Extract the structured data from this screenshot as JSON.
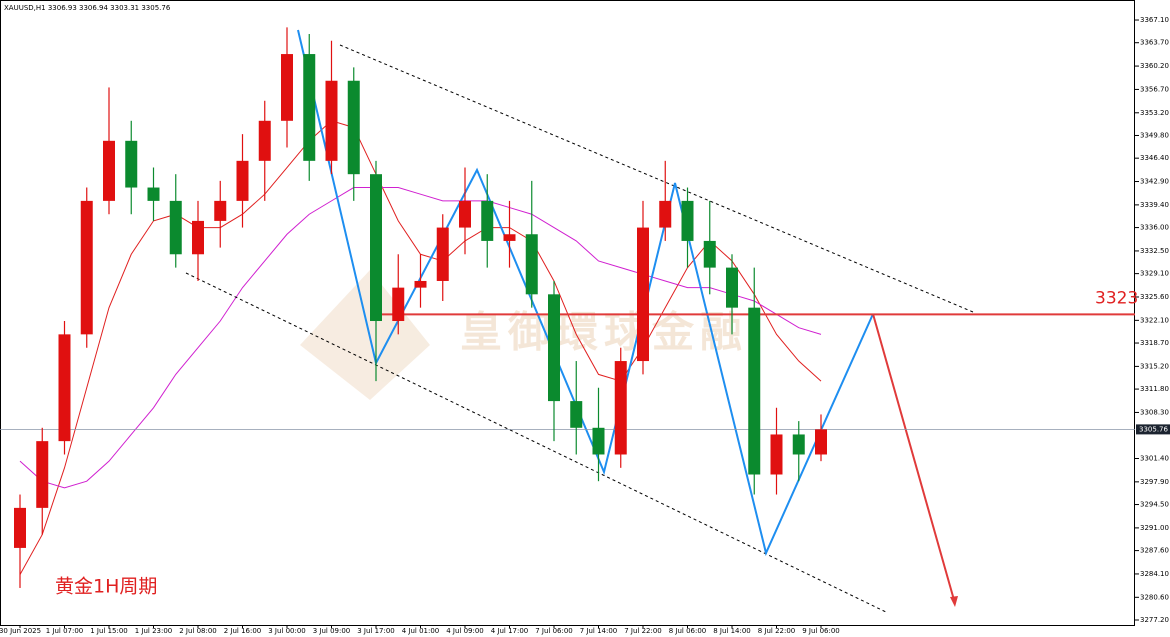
{
  "chart_data": {
    "type": "candlestick",
    "title": "XAUUSD,H1  3306.93 3306.94 3303.31 3305.76",
    "categories": [
      "30 Jun 2025",
      null,
      "1 Jul 07:00",
      null,
      "1 Jul 15:00",
      null,
      "1 Jul 23:00",
      null,
      "2 Jul 08:00",
      null,
      "2 Jul 16:00",
      null,
      "3 Jul 00:00",
      null,
      "3 Jul 09:00",
      null,
      "3 Jul 17:00",
      null,
      "4 Jul 01:00",
      null,
      "4 Jul 09:00",
      null,
      "4 Jul 17:00",
      null,
      "7 Jul 06:00",
      null,
      "7 Jul 14:00",
      null,
      "7 Jul 22:00",
      null,
      "8 Jul 06:00",
      null,
      "8 Jul 14:00",
      null,
      "8 Jul 22:00",
      null,
      "9 Jul 06:00"
    ],
    "open": [
      3288,
      3294,
      3304,
      3320,
      3340,
      3349,
      3342,
      3340,
      3332,
      3337,
      3340,
      3346,
      3352,
      3362,
      3346,
      3358,
      3344,
      3322,
      3327,
      3328,
      3336,
      3340,
      3334,
      3335,
      3326,
      3310,
      3306,
      3302,
      3316,
      3336,
      3340,
      3334,
      3330,
      3324,
      3299,
      3305,
      3302
    ],
    "high": [
      3296,
      3306,
      3322,
      3342,
      3357,
      3352,
      3345,
      3344,
      3340,
      3343,
      3350,
      3355,
      3366,
      3365,
      3364,
      3360,
      3346,
      3332,
      3332,
      3338,
      3345,
      3344,
      3340,
      3343,
      3328,
      3316,
      3312,
      3318,
      3340,
      3346,
      3342,
      3340,
      3332,
      3330,
      3309,
      3307,
      3308
    ],
    "low": [
      3282,
      3290,
      3302,
      3318,
      3338,
      3338,
      3337,
      3330,
      3328,
      3333,
      3336,
      3340,
      3348,
      3343,
      3344,
      3340,
      3313,
      3320,
      3324,
      3325,
      3332,
      3330,
      3330,
      3324,
      3304,
      3302,
      3298,
      3300,
      3314,
      3334,
      3330,
      3326,
      3320,
      3296,
      3296,
      3298,
      3301
    ],
    "close": [
      3294,
      3304,
      3320,
      3340,
      3349,
      3342,
      3340,
      3332,
      3337,
      3340,
      3346,
      3352,
      3362,
      3346,
      3358,
      3344,
      3322,
      3327,
      3328,
      3336,
      3340,
      3334,
      3335,
      3326,
      3310,
      3306,
      3302,
      3316,
      3336,
      3340,
      3334,
      3330,
      3324,
      3299,
      3305,
      3302,
      3305.76
    ],
    "up_color": "#e01010",
    "down_color": "#0b8a2e",
    "series": [
      {
        "color": "#e02020",
        "values": [
          3284,
          3290,
          3300,
          3312,
          3324,
          3332,
          3337,
          3338,
          3336,
          3336,
          3338,
          3341,
          3345,
          3349,
          3352,
          3351,
          3344,
          3337,
          3332,
          3331,
          3334,
          3336,
          3336,
          3334,
          3328,
          3320,
          3314,
          3313,
          3318,
          3324,
          3330,
          3334,
          3331,
          3326,
          3320,
          3316,
          3313
        ]
      },
      {
        "color": "#d020d0",
        "values": [
          3301,
          3298,
          3297,
          3298,
          3301,
          3305,
          3309,
          3314,
          3318,
          3322,
          3327,
          3331,
          3335,
          3338,
          3340,
          3342,
          3342,
          3342,
          3341,
          3340,
          3340,
          3340,
          3339,
          3338,
          3336,
          3334,
          3331,
          3330,
          3329,
          3328,
          3327,
          3327,
          3326,
          3325,
          3323,
          3321,
          3320
        ]
      }
    ],
    "ylim": [
      3276.45,
      3370.1
    ],
    "yticks": [
      {
        "value": 3367.1,
        "label": "3367.10"
      },
      {
        "value": 3363.7,
        "label": "3363.70"
      },
      {
        "value": 3360.2,
        "label": "3360.20"
      },
      {
        "value": 3356.7,
        "label": "3356.70"
      },
      {
        "value": 3353.2,
        "label": "3353.20"
      },
      {
        "value": 3349.8,
        "label": "3349.80"
      },
      {
        "value": 3346.4,
        "label": "3346.40"
      },
      {
        "value": 3342.9,
        "label": "3342.90"
      },
      {
        "value": 3339.4,
        "label": "3339.40"
      },
      {
        "value": 3336,
        "label": "3336.00"
      },
      {
        "value": 3332.5,
        "label": "3332.50"
      },
      {
        "value": 3329.1,
        "label": "3329.10"
      },
      {
        "value": 3325.6,
        "label": "3325.60"
      },
      {
        "value": 3322.1,
        "label": "3322.10"
      },
      {
        "value": 3318.7,
        "label": "3318.70"
      },
      {
        "value": 3315.2,
        "label": "3315.20"
      },
      {
        "value": 3311.8,
        "label": "3311.80"
      },
      {
        "value": 3308.3,
        "label": "3308.30"
      },
      {
        "value": 3301.4,
        "label": "3301.40"
      },
      {
        "value": 3297.9,
        "label": "3297.90"
      },
      {
        "value": 3294.5,
        "label": "3294.50"
      },
      {
        "value": 3291,
        "label": "3291.00"
      },
      {
        "value": 3287.6,
        "label": "3287.60"
      },
      {
        "value": 3284.1,
        "label": "3284.10"
      },
      {
        "value": 3280.6,
        "label": "3280.60"
      },
      {
        "value": 3277.2,
        "label": "3277.20"
      }
    ],
    "current_price": 3305.76,
    "level": 3323,
    "annotation": "黄金1H周期",
    "watermark": "皇御環球金融"
  }
}
